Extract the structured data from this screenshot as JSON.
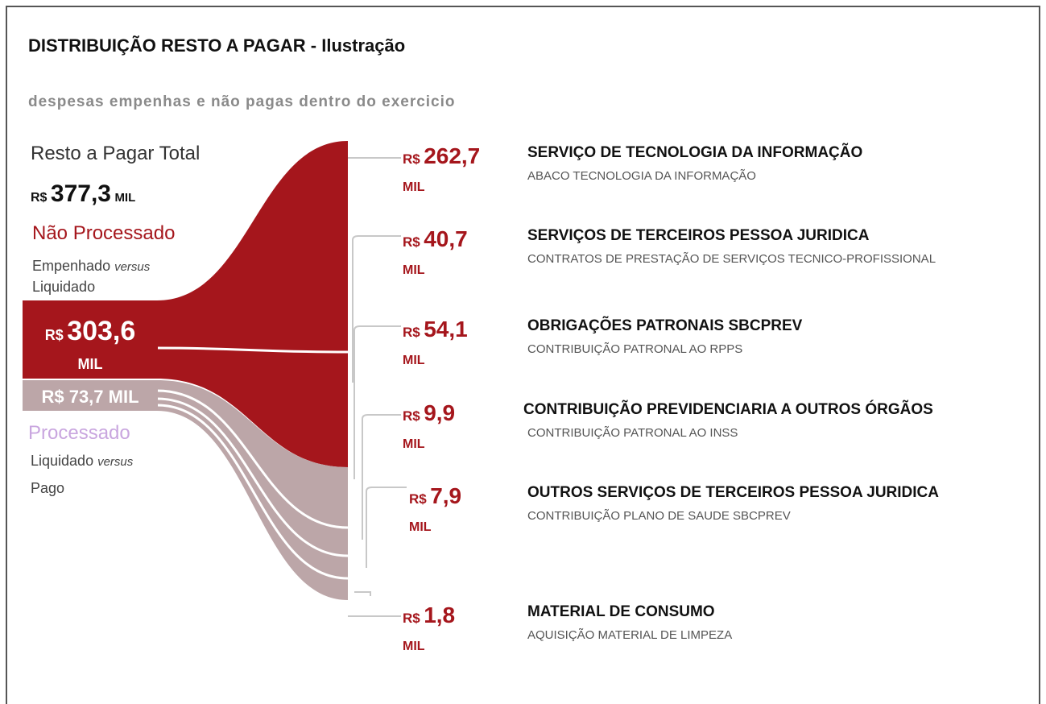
{
  "title": "DISTRIBUIÇÃO RESTO A PAGAR - Ilustração",
  "subtitle": "despesas empenhas e não pagas dentro do exercicio",
  "total": {
    "label": "Resto a Pagar Total",
    "currency": "R$",
    "value": "377,3",
    "unit": "MIL"
  },
  "nao_processado": {
    "label": "Não Processado",
    "desc_1": "Empenhado",
    "desc_em": "versus",
    "desc_2": "Liquidado",
    "currency": "R$",
    "value": "303,6",
    "unit": "MIL"
  },
  "processado": {
    "label": "Processado",
    "desc_1": "Liquidado",
    "desc_em": "versus",
    "desc_2": "Pago",
    "amount": "R$ 73,7 MIL"
  },
  "items": [
    {
      "currency": "R$",
      "value": "262,7",
      "unit": "MIL",
      "category": "SERVIÇO DE TECNOLOGIA DA INFORMAÇÃO",
      "description": "ABACO TECNOLOGIA DA INFORMAÇÃO"
    },
    {
      "currency": "R$",
      "value": "40,7",
      "unit": "MIL",
      "category": "SERVIÇOS DE TERCEIROS PESSOA JURIDICA",
      "description": "CONTRATOS DE PRESTAÇÃO DE SERVIÇOS TECNICO-PROFISSIONAL"
    },
    {
      "currency": "R$",
      "value": "54,1",
      "unit": "MIL",
      "category": "OBRIGAÇÕES PATRONAIS SBCPREV",
      "description": "CONTRIBUIÇÃO PATRONAL AO RPPS"
    },
    {
      "currency": "R$",
      "value": "9,9",
      "unit": "MIL",
      "category": "CONTRIBUIÇÃO PREVIDENCIARIA A OUTROS ÓRGÃOS",
      "description": "CONTRIBUIÇÃO PATRONAL AO INSS"
    },
    {
      "currency": "R$",
      "value": "7,9",
      "unit": "MIL",
      "category": "OUTROS SERVIÇOS DE TERCEIROS PESSOA JURIDICA",
      "description": "CONTRIBUIÇÃO PLANO DE SAUDE SBCPREV"
    },
    {
      "currency": "R$",
      "value": "1,8",
      "unit": "MIL",
      "category": "MATERIAL DE CONSUMO",
      "description": "AQUISIÇÃO MATERIAL DE LIMPEZA"
    }
  ]
}
